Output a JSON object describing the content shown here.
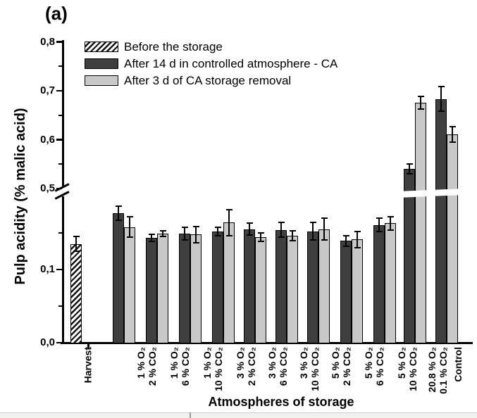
{
  "chart_data": {
    "type": "bar",
    "title": "(a)",
    "ylabel": "Pulp acidity (% malic acid)",
    "xlabel": "Atmospheres of storage",
    "y_axis": {
      "decimal_separator": ",",
      "major_ticks": [
        {
          "label": "0,0",
          "value": 0.0
        },
        {
          "label": "0,1",
          "value": 0.1
        },
        {
          "label": "0,5",
          "value": 0.5
        },
        {
          "label": "0,6",
          "value": 0.6
        },
        {
          "label": "0,7",
          "value": 0.7
        },
        {
          "label": "0,8",
          "value": 0.8
        }
      ],
      "minor_ticks": [
        0.05,
        0.15,
        0.55,
        0.65,
        0.75
      ],
      "axis_break": {
        "lower_segment_max": 0.2,
        "upper_segment_min": 0.5
      }
    },
    "categories": [
      {
        "lines": [
          "Harvest"
        ]
      },
      {
        "lines": [
          "1 % O₂",
          "2 % CO₂"
        ]
      },
      {
        "lines": [
          "1 % O₂",
          "6 % CO₂"
        ]
      },
      {
        "lines": [
          "1 % O₂",
          "10 % CO₂"
        ]
      },
      {
        "lines": [
          "3 % O₂",
          "2 % CO₂"
        ]
      },
      {
        "lines": [
          "3 % O₂",
          "6 % CO₂"
        ]
      },
      {
        "lines": [
          "3 % O₂",
          "10 % CO₂"
        ]
      },
      {
        "lines": [
          "5 % O₂",
          "2 % CO₂"
        ]
      },
      {
        "lines": [
          "5 % O₂",
          "6 % CO₂"
        ]
      },
      {
        "lines": [
          "5 % O₂",
          "10 % CO₂"
        ]
      },
      {
        "lines": [
          "20.8 % O₂",
          "0.1 % CO₂"
        ]
      },
      {
        "lines": [
          "Control"
        ]
      }
    ],
    "series": [
      {
        "name": "Before the storage",
        "style": "hatched",
        "color": "#ffffff",
        "values": [
          0.135,
          null,
          null,
          null,
          null,
          null,
          null,
          null,
          null,
          null,
          null,
          null
        ],
        "errors": [
          0.01,
          null,
          null,
          null,
          null,
          null,
          null,
          null,
          null,
          null,
          null,
          null
        ]
      },
      {
        "name": "After 14 d in controlled atmosphere - CA",
        "style": "solid",
        "color": "#3f3f3f",
        "values": [
          null,
          0.177,
          0.143,
          0.149,
          0.152,
          0.155,
          0.154,
          0.152,
          0.139,
          0.161,
          0.54,
          0.683
        ],
        "errors": [
          null,
          0.01,
          0.005,
          0.009,
          0.006,
          0.008,
          0.01,
          0.012,
          0.007,
          0.009,
          0.01,
          0.025
        ]
      },
      {
        "name": "After 3 d of CA storage removal",
        "style": "solid",
        "color": "#c8c8c8",
        "values": [
          null,
          0.158,
          0.149,
          0.148,
          0.164,
          0.144,
          0.146,
          0.155,
          0.141,
          0.163,
          0.676,
          0.611
        ],
        "errors": [
          null,
          0.014,
          0.004,
          0.011,
          0.018,
          0.006,
          0.007,
          0.015,
          0.011,
          0.009,
          0.013,
          0.016
        ]
      }
    ]
  }
}
